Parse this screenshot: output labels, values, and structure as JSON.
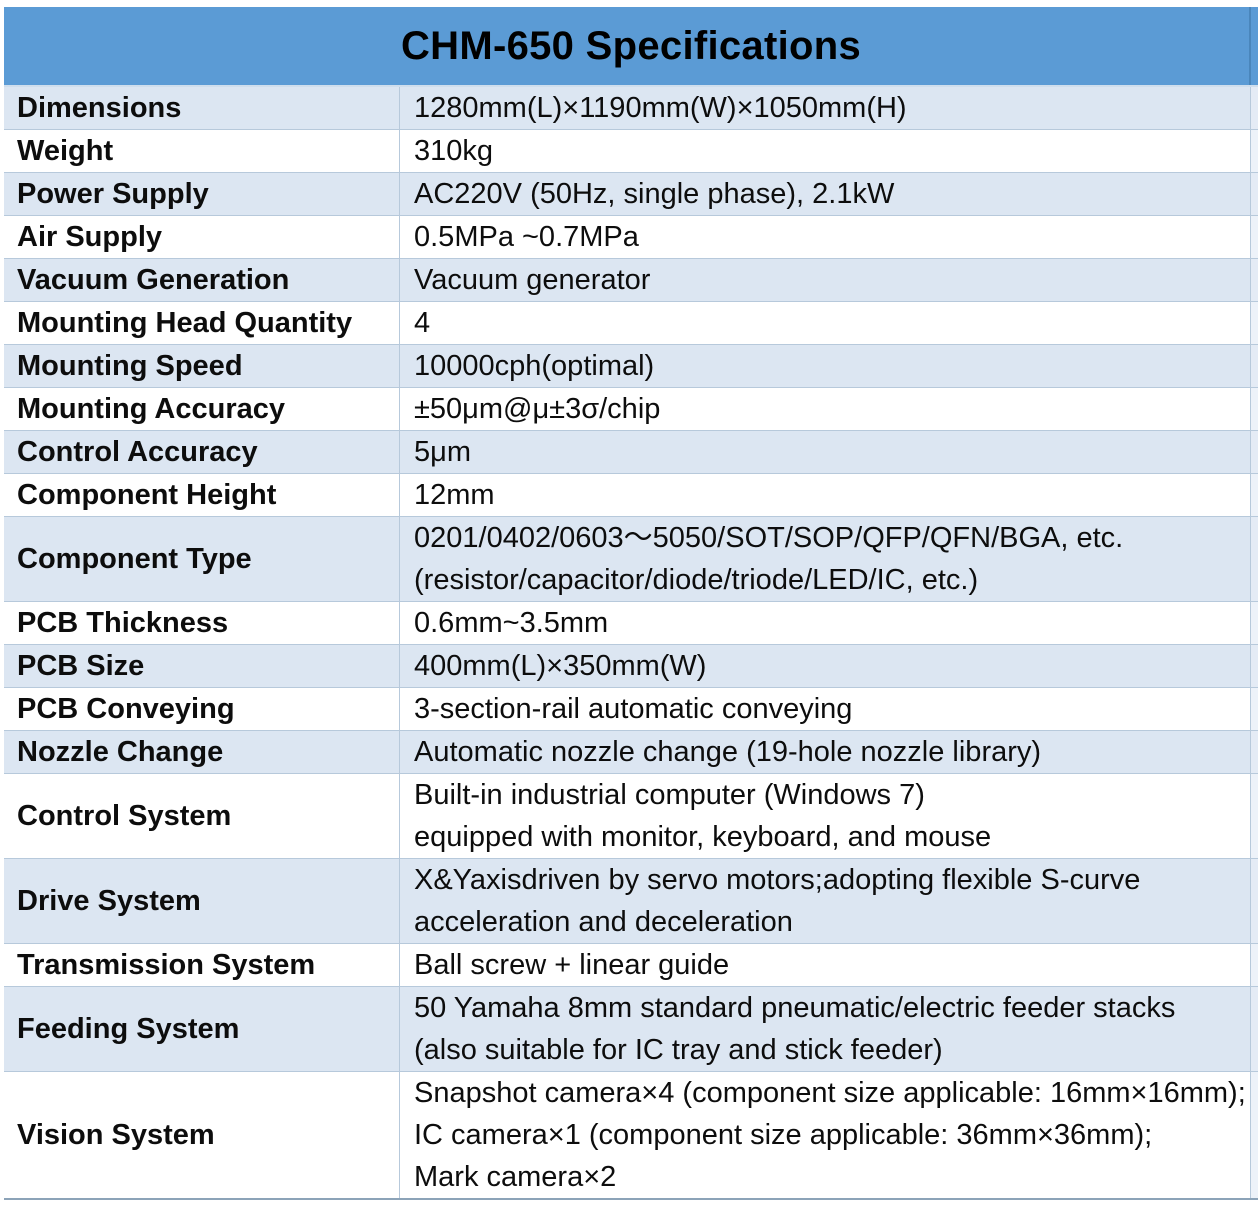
{
  "title": "CHM-650 Specifications",
  "colors": {
    "header_bg": "#5b9bd5",
    "band_row_bg": "#dce6f2",
    "plain_row_bg": "#ffffff",
    "row_border": "#b7c9db",
    "text": "#0d0d0d"
  },
  "table": {
    "rows": [
      {
        "label": "Dimensions",
        "value_lines": [
          "1280mm(L)×1190mm(W)×1050mm(H)"
        ]
      },
      {
        "label": "Weight",
        "value_lines": [
          "310kg"
        ]
      },
      {
        "label": "Power Supply",
        "value_lines": [
          "AC220V (50Hz, single phase), 2.1kW"
        ]
      },
      {
        "label": "Air Supply",
        "value_lines": [
          "0.5MPa ~0.7MPa"
        ]
      },
      {
        "label": "Vacuum Generation",
        "value_lines": [
          "Vacuum generator"
        ]
      },
      {
        "label": "Mounting Head Quantity",
        "value_lines": [
          "4"
        ]
      },
      {
        "label": "Mounting Speed",
        "value_lines": [
          "10000cph(optimal)"
        ]
      },
      {
        "label": "Mounting Accuracy",
        "value_lines": [
          "±50μm@μ±3σ/chip"
        ]
      },
      {
        "label": "Control Accuracy",
        "value_lines": [
          "5μm"
        ]
      },
      {
        "label": "Component Height",
        "value_lines": [
          "12mm"
        ]
      },
      {
        "label": "Component Type",
        "value_lines": [
          "0201/0402/0603～5050/SOT/SOP/QFP/QFN/BGA, etc.",
          "(resistor/capacitor/diode/triode/LED/IC, etc.)"
        ]
      },
      {
        "label": "PCB Thickness",
        "value_lines": [
          "0.6mm~3.5mm"
        ]
      },
      {
        "label": "PCB Size",
        "value_lines": [
          "400mm(L)×350mm(W)"
        ]
      },
      {
        "label": "PCB Conveying",
        "value_lines": [
          "3-section-rail automatic conveying"
        ]
      },
      {
        "label": "Nozzle Change",
        "value_lines": [
          "Automatic nozzle change (19-hole nozzle library)"
        ]
      },
      {
        "label": "Control System",
        "value_lines": [
          "Built-in industrial computer (Windows 7)",
          "equipped with monitor, keyboard, and mouse"
        ]
      },
      {
        "label": "Drive System",
        "value_lines": [
          "X&Yaxisdriven by servo motors;adopting flexible S-curve",
          "acceleration and deceleration"
        ]
      },
      {
        "label": "Transmission System",
        "value_lines": [
          "Ball screw + linear guide"
        ]
      },
      {
        "label": "Feeding System",
        "value_lines": [
          "50 Yamaha 8mm standard pneumatic/electric feeder stacks",
          "(also suitable for IC tray and stick feeder)"
        ]
      },
      {
        "label": "Vision System",
        "value_lines": [
          "Snapshot camera×4 (component size applicable: 16mm×16mm);",
          "IC camera×1 (component size applicable: 36mm×36mm);",
          "Mark camera×2"
        ]
      }
    ]
  }
}
